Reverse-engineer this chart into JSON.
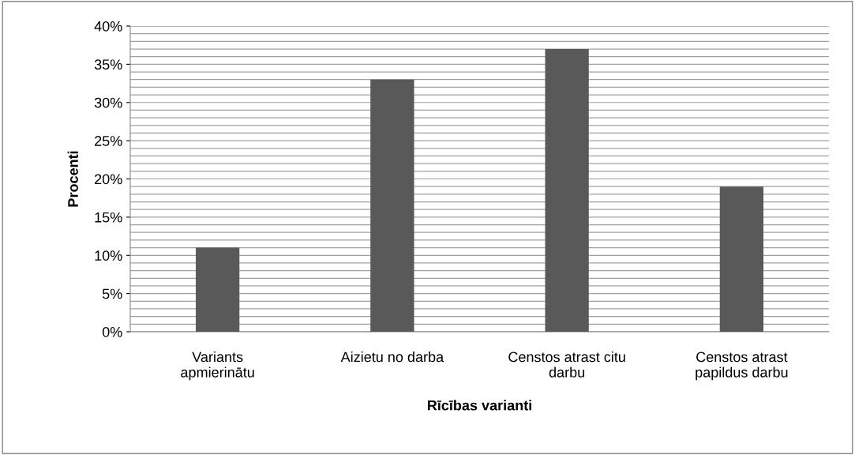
{
  "chart_data": {
    "type": "bar",
    "xlabel": "Rīcības varianti",
    "ylabel": "Procenti",
    "categories": [
      "Variants apmierinātu",
      "Aizietu no darba",
      "Censtos atrast citu darbu",
      "Censtos atrast papildus darbu"
    ],
    "values": [
      11,
      33,
      37,
      19
    ],
    "color": "#595959",
    "ylim": [
      0,
      40
    ],
    "yticks": [
      {
        "value": 0,
        "label": "0%"
      },
      {
        "value": 1,
        "label": null
      },
      {
        "value": 2,
        "label": null
      },
      {
        "value": 3,
        "label": null
      },
      {
        "value": 4,
        "label": null
      },
      {
        "value": 5,
        "label": "5%"
      },
      {
        "value": 6,
        "label": null
      },
      {
        "value": 7,
        "label": null
      },
      {
        "value": 8,
        "label": null
      },
      {
        "value": 9,
        "label": null
      },
      {
        "value": 10,
        "label": "10%"
      },
      {
        "value": 11,
        "label": null
      },
      {
        "value": 12,
        "label": null
      },
      {
        "value": 13,
        "label": null
      },
      {
        "value": 14,
        "label": null
      },
      {
        "value": 15,
        "label": "15%"
      },
      {
        "value": 16,
        "label": null
      },
      {
        "value": 17,
        "label": null
      },
      {
        "value": 18,
        "label": null
      },
      {
        "value": 19,
        "label": null
      },
      {
        "value": 20,
        "label": "20%"
      },
      {
        "value": 21,
        "label": null
      },
      {
        "value": 22,
        "label": null
      },
      {
        "value": 23,
        "label": null
      },
      {
        "value": 24,
        "label": null
      },
      {
        "value": 25,
        "label": "25%"
      },
      {
        "value": 26,
        "label": null
      },
      {
        "value": 27,
        "label": null
      },
      {
        "value": 28,
        "label": null
      },
      {
        "value": 29,
        "label": null
      },
      {
        "value": 30,
        "label": "30%"
      },
      {
        "value": 31,
        "label": null
      },
      {
        "value": 32,
        "label": null
      },
      {
        "value": 33,
        "label": null
      },
      {
        "value": 34,
        "label": null
      },
      {
        "value": 35,
        "label": "35%"
      },
      {
        "value": 36,
        "label": null
      },
      {
        "value": 37,
        "label": null
      },
      {
        "value": 38,
        "label": null
      },
      {
        "value": 39,
        "label": null
      },
      {
        "value": 40,
        "label": "40%"
      }
    ],
    "grid": "y",
    "legend": false
  }
}
